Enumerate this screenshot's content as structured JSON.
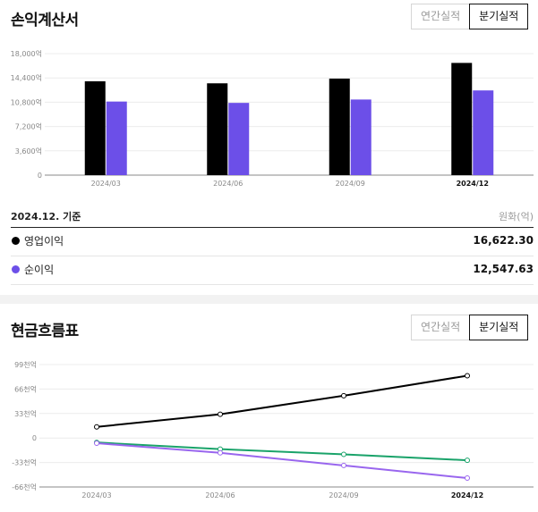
{
  "income_statement": {
    "title": "손익계산서",
    "toggle": {
      "annual_label": "연간실적",
      "quarterly_label": "분기실적",
      "selected": "quarterly"
    },
    "basis_date": "2024.12. 기준",
    "unit": "원화(억)",
    "metrics": [
      {
        "label": "영업이익",
        "value": "16,622.30",
        "color": "#000000"
      },
      {
        "label": "순이익",
        "value": "12,547.63",
        "color": "#6c4fe8"
      }
    ]
  },
  "cash_flow": {
    "title": "현금흐름표",
    "toggle": {
      "annual_label": "연간실적",
      "quarterly_label": "분기실적",
      "selected": "quarterly"
    }
  },
  "chart_data": [
    {
      "type": "bar",
      "categories": [
        "2024/03",
        "2024/06",
        "2024/09",
        "2024/12"
      ],
      "highlight_category": "2024/12",
      "series": [
        {
          "name": "영업이익",
          "values": [
            13900,
            13600,
            14300,
            16622.3
          ],
          "color": "#000000"
        },
        {
          "name": "순이익",
          "values": [
            10900,
            10700,
            11200,
            12547.63
          ],
          "color": "#6c4fe8"
        }
      ],
      "y_ticks": [
        0,
        3600,
        7200,
        10800,
        14400,
        18000
      ],
      "y_tick_labels": [
        "0",
        "3,600억",
        "7,200억",
        "10,800억",
        "14,400억",
        "18,000억"
      ],
      "ylim": [
        0,
        18000
      ]
    },
    {
      "type": "line",
      "categories": [
        "2024/03",
        "2024/06",
        "2024/09",
        "2024/12"
      ],
      "highlight_category": "2024/12",
      "series": [
        {
          "values": [
            15,
            32,
            57,
            84
          ],
          "color": "#000000"
        },
        {
          "values": [
            -6,
            -15,
            -22,
            -30
          ],
          "color": "#1aa36a"
        },
        {
          "values": [
            -7,
            -20,
            -37,
            -54
          ],
          "color": "#9966ee"
        }
      ],
      "y_ticks": [
        -66,
        -33,
        0,
        33,
        66,
        99
      ],
      "y_tick_labels": [
        "-66천억",
        "-33천억",
        "0",
        "33천억",
        "66천억",
        "99천억"
      ],
      "ylim": [
        -66,
        99
      ]
    }
  ]
}
